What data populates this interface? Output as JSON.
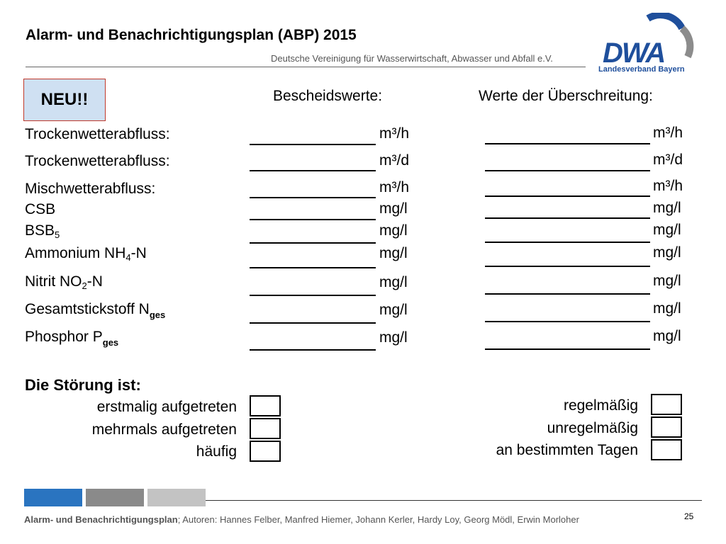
{
  "header": {
    "title": "Alarm- und Benachrichtigungsplan (ABP) 2015",
    "subtitle": "Deutsche Vereinigung für Wasserwirtschaft, Abwasser und Abfall e.V."
  },
  "logo": {
    "text": "DWA",
    "caption": "Landesverband Bayern",
    "colors": {
      "blue": "#1f4f9c",
      "gray": "#8c8c8c"
    }
  },
  "badge": {
    "label": "NEU!!",
    "border_color": "#c0392b",
    "fill_color": "#cfe0f2"
  },
  "columns": {
    "bescheid": "Bescheidswerte:",
    "werte": "Werte der Überschreitung:"
  },
  "rows": [
    {
      "label": "Trockenwetterabfluss:",
      "unit_a": "m³/h",
      "unit_b": "m³/h"
    },
    {
      "label": "Trockenwetterabfluss:",
      "unit_a": "m³/d",
      "unit_b": "m³/d"
    },
    {
      "label": "Mischwetterabfluss:",
      "unit_a": "m³/h",
      "unit_b": "m³/h"
    },
    {
      "label": "CSB",
      "unit_a": "mg/l",
      "unit_b": "mg/l"
    },
    {
      "label": "BSB",
      "label_sub": "5",
      "unit_a": "mg/l",
      "unit_b": "mg/l"
    },
    {
      "label": "Ammonium NH",
      "label_sub": "4",
      "label_after": "-N",
      "unit_a": "mg/l",
      "unit_b": "mg/l"
    },
    {
      "label": "Nitrit NO",
      "label_sub": "2",
      "label_after": "-N",
      "unit_a": "mg/l",
      "unit_b": "mg/l"
    },
    {
      "label": "Gesamtstickstoff N",
      "label_sub": "ges",
      "unit_a": "mg/l",
      "unit_b": "mg/l"
    },
    {
      "label": "Phosphor P",
      "label_sub": "ges",
      "unit_a": "mg/l",
      "unit_b": "mg/l"
    }
  ],
  "stoerung": {
    "heading": "Die Störung ist:",
    "left_options": [
      "erstmalig aufgetreten",
      "mehrmals aufgetreten",
      "häufig"
    ],
    "right_options": [
      "regelmäßig",
      "unregelmäßig",
      "an bestimmten Tagen"
    ]
  },
  "footer": {
    "title": "Alarm- und Benachrichtigungsplan",
    "authors": "; Autoren: Hannes Felber, Manfred Hiemer, Johann Kerler, Hardy Loy, Georg Mödl, Erwin Morloher",
    "page": "25",
    "bar_colors": [
      "#2a74c0",
      "#8a8a8a",
      "#c3c3c3"
    ]
  }
}
